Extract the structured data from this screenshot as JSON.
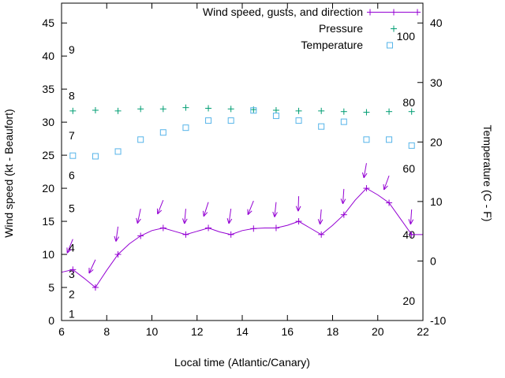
{
  "chart_data": {
    "type": "line",
    "title": "",
    "xlabel": "Local time (Atlantic/Canary)",
    "ylabel_left": "Wind speed (kt - Beaufort)",
    "ylabel_right": "Temperature (C - F)",
    "legend_position": "top-right-inside",
    "x_range": [
      6,
      22
    ],
    "y_left_range": [
      0,
      48
    ],
    "y_right_range_c": [
      -10,
      43.3
    ],
    "x_ticks": [
      6,
      8,
      10,
      12,
      14,
      16,
      18,
      20,
      22
    ],
    "y_left_ticks": [
      0,
      5,
      10,
      15,
      20,
      25,
      30,
      35,
      40,
      45
    ],
    "y_right_ticks_c": [
      -10,
      0,
      10,
      20,
      30,
      40
    ],
    "beaufort_scale": [
      {
        "label": "1",
        "at_kt": 1
      },
      {
        "label": "2",
        "at_kt": 4
      },
      {
        "label": "3",
        "at_kt": 7
      },
      {
        "label": "4",
        "at_kt": 11
      },
      {
        "label": "5",
        "at_kt": 17
      },
      {
        "label": "6",
        "at_kt": 22
      },
      {
        "label": "7",
        "at_kt": 28
      },
      {
        "label": "8",
        "at_kt": 34
      },
      {
        "label": "9",
        "at_kt": 41
      }
    ],
    "fahrenheit_scale": [
      {
        "label": "20",
        "f": 20
      },
      {
        "label": "40",
        "f": 40
      },
      {
        "label": "60",
        "f": 60
      },
      {
        "label": "80",
        "f": 80
      },
      {
        "label": "100",
        "f": 100
      }
    ],
    "x_points": [
      6.5,
      7.5,
      8.5,
      9.5,
      10.5,
      11.5,
      12.5,
      13.5,
      14.5,
      15.5,
      16.5,
      17.5,
      18.5,
      19.5,
      20.5,
      21.5
    ],
    "series": [
      {
        "name": "Wind speed, gusts, and direction",
        "style": "line+plus-markers+direction-arrows",
        "color": "#9400d3",
        "values_kt": [
          7.7,
          5.0,
          10.0,
          12.8,
          14.0,
          13.0,
          14.0,
          13.0,
          13.9,
          14.0,
          15.0,
          13.0,
          16.0,
          20.0,
          17.8,
          13.0
        ],
        "line": [
          [
            6,
            7.3
          ],
          [
            6.5,
            7.7
          ],
          [
            7,
            6.4
          ],
          [
            7.5,
            5
          ],
          [
            8,
            7.6
          ],
          [
            8.5,
            10
          ],
          [
            9,
            11.6
          ],
          [
            9.5,
            12.8
          ],
          [
            10,
            13.6
          ],
          [
            10.5,
            14
          ],
          [
            11,
            13.5
          ],
          [
            11.5,
            13
          ],
          [
            12,
            13.5
          ],
          [
            12.5,
            14
          ],
          [
            13,
            13.4
          ],
          [
            13.5,
            13
          ],
          [
            14,
            13.6
          ],
          [
            14.5,
            13.9
          ],
          [
            15,
            14
          ],
          [
            15.5,
            14
          ],
          [
            16,
            14.4
          ],
          [
            16.5,
            15
          ],
          [
            17,
            14
          ],
          [
            17.5,
            13
          ],
          [
            18,
            14.4
          ],
          [
            18.5,
            16
          ],
          [
            19,
            18.2
          ],
          [
            19.5,
            20
          ],
          [
            20,
            19
          ],
          [
            20.5,
            17.8
          ],
          [
            21,
            15.4
          ],
          [
            21.5,
            13
          ],
          [
            22,
            13
          ]
        ],
        "gusts": [
          {
            "t": 6.5,
            "gust_kt": 12.3,
            "tilt_deg": 22
          },
          {
            "t": 7.5,
            "gust_kt": 9.2,
            "tilt_deg": 25
          },
          {
            "t": 8.5,
            "gust_kt": 14.2,
            "tilt_deg": 8
          },
          {
            "t": 9.5,
            "gust_kt": 16.9,
            "tilt_deg": 12
          },
          {
            "t": 10.5,
            "gust_kt": 18.2,
            "tilt_deg": 22
          },
          {
            "t": 11.5,
            "gust_kt": 16.9,
            "tilt_deg": 5
          },
          {
            "t": 12.5,
            "gust_kt": 17.9,
            "tilt_deg": 18
          },
          {
            "t": 13.5,
            "gust_kt": 16.9,
            "tilt_deg": 8
          },
          {
            "t": 14.5,
            "gust_kt": 18.1,
            "tilt_deg": 22
          },
          {
            "t": 15.5,
            "gust_kt": 17.9,
            "tilt_deg": 6
          },
          {
            "t": 16.5,
            "gust_kt": 18.8,
            "tilt_deg": 2
          },
          {
            "t": 17.5,
            "gust_kt": 16.8,
            "tilt_deg": 5
          },
          {
            "t": 18.5,
            "gust_kt": 19.9,
            "tilt_deg": 4
          },
          {
            "t": 19.5,
            "gust_kt": 23.8,
            "tilt_deg": 10
          },
          {
            "t": 20.5,
            "gust_kt": 21.9,
            "tilt_deg": 20
          },
          {
            "t": 21.5,
            "gust_kt": 16.8,
            "tilt_deg": 4
          }
        ]
      },
      {
        "name": "Pressure",
        "style": "plus-markers",
        "color": "#009e73",
        "values_left_scale": [
          31.7,
          31.8,
          31.7,
          32.0,
          32.0,
          32.2,
          32.1,
          32.0,
          31.9,
          31.8,
          31.7,
          31.7,
          31.6,
          31.5,
          31.6,
          31.6
        ]
      },
      {
        "name": "Temperature",
        "style": "open-square-markers",
        "color": "#56b4e9",
        "values_c": [
          17.7,
          17.6,
          18.4,
          20.4,
          21.6,
          22.4,
          23.6,
          23.6,
          25.3,
          24.4,
          23.6,
          22.6,
          23.4,
          20.4,
          20.4,
          19.4
        ]
      }
    ]
  }
}
